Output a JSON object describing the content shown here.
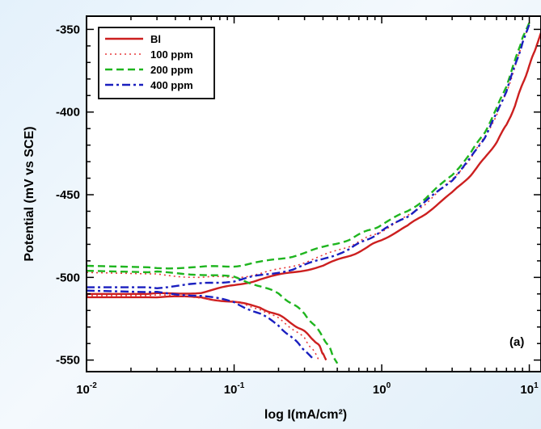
{
  "chart_data": {
    "type": "line",
    "title": "",
    "xlabel": "log I(mA/cm²)",
    "ylabel": "Potential (mV vs SCE)",
    "xscale": "log",
    "xlim": [
      0.01,
      12
    ],
    "ylim": [
      -557,
      -342
    ],
    "grid": false,
    "legend_position": "top-left",
    "x_ticks": [
      {
        "value": 0.01,
        "base": "10",
        "exp": "-2"
      },
      {
        "value": 0.1,
        "base": "10",
        "exp": "-1"
      },
      {
        "value": 1,
        "base": "10",
        "exp": "0"
      },
      {
        "value": 10,
        "base": "10",
        "exp": "1"
      }
    ],
    "y_ticks": [
      -350,
      -400,
      -450,
      -500,
      -550
    ],
    "annotation": "(a)",
    "series": [
      {
        "name": "Bl",
        "color": "#cc1f1f",
        "dash": "solid",
        "anodic": [
          [
            0.01,
            -510
          ],
          [
            0.03,
            -510
          ],
          [
            0.06,
            -509
          ],
          [
            0.1,
            -505
          ],
          [
            0.15,
            -501
          ],
          [
            0.25,
            -497
          ],
          [
            0.4,
            -493
          ],
          [
            0.6,
            -487
          ],
          [
            0.8,
            -482
          ],
          [
            1,
            -477
          ],
          [
            1.5,
            -469
          ],
          [
            2,
            -461
          ],
          [
            3,
            -449
          ],
          [
            4,
            -438
          ],
          [
            5,
            -428
          ],
          [
            6,
            -418
          ],
          [
            7,
            -408
          ],
          [
            8,
            -396
          ],
          [
            9,
            -383
          ],
          [
            10,
            -372
          ],
          [
            11,
            -362
          ],
          [
            12,
            -352
          ]
        ],
        "cathodic": [
          [
            0.01,
            -512
          ],
          [
            0.03,
            -512
          ],
          [
            0.06,
            -512
          ],
          [
            0.1,
            -515
          ],
          [
            0.15,
            -518
          ],
          [
            0.2,
            -523
          ],
          [
            0.25,
            -528
          ],
          [
            0.3,
            -533
          ],
          [
            0.35,
            -538
          ],
          [
            0.38,
            -542
          ],
          [
            0.4,
            -546
          ],
          [
            0.42,
            -550
          ]
        ]
      },
      {
        "name": "100 ppm",
        "color": "#e8383a",
        "dash": "dot",
        "anodic": [
          [
            0.01,
            -497
          ],
          [
            0.03,
            -498
          ],
          [
            0.06,
            -500
          ],
          [
            0.1,
            -500
          ],
          [
            0.15,
            -498
          ],
          [
            0.25,
            -493
          ],
          [
            0.4,
            -487
          ],
          [
            0.6,
            -481
          ],
          [
            0.8,
            -476
          ],
          [
            1,
            -472
          ],
          [
            1.5,
            -463
          ],
          [
            2,
            -455
          ],
          [
            3,
            -441
          ],
          [
            4,
            -428
          ],
          [
            5,
            -415
          ],
          [
            6,
            -402
          ],
          [
            7,
            -388
          ],
          [
            8,
            -373
          ],
          [
            9,
            -358
          ],
          [
            10,
            -347
          ]
        ],
        "cathodic": [
          [
            0.01,
            -511
          ],
          [
            0.03,
            -511
          ],
          [
            0.06,
            -512
          ],
          [
            0.1,
            -515
          ],
          [
            0.15,
            -519
          ],
          [
            0.2,
            -525
          ],
          [
            0.25,
            -531
          ],
          [
            0.3,
            -537
          ],
          [
            0.33,
            -542
          ],
          [
            0.36,
            -547
          ],
          [
            0.38,
            -551
          ]
        ]
      },
      {
        "name": "200 ppm",
        "color": "#1fb51f",
        "dash": "dash",
        "anodic": [
          [
            0.01,
            -493
          ],
          [
            0.03,
            -494
          ],
          [
            0.06,
            -494
          ],
          [
            0.1,
            -493
          ],
          [
            0.15,
            -491
          ],
          [
            0.25,
            -487
          ],
          [
            0.4,
            -482
          ],
          [
            0.6,
            -477
          ],
          [
            0.8,
            -472
          ],
          [
            1,
            -468
          ],
          [
            1.5,
            -460
          ],
          [
            2,
            -452
          ],
          [
            3,
            -438
          ],
          [
            4,
            -425
          ],
          [
            5,
            -412
          ],
          [
            6,
            -398
          ],
          [
            7,
            -384
          ],
          [
            8,
            -369
          ],
          [
            9,
            -355
          ],
          [
            10,
            -346
          ]
        ],
        "cathodic": [
          [
            0.01,
            -496
          ],
          [
            0.03,
            -497
          ],
          [
            0.06,
            -498
          ],
          [
            0.1,
            -500
          ],
          [
            0.15,
            -505
          ],
          [
            0.2,
            -510
          ],
          [
            0.25,
            -516
          ],
          [
            0.3,
            -522
          ],
          [
            0.35,
            -529
          ],
          [
            0.4,
            -536
          ],
          [
            0.44,
            -542
          ],
          [
            0.47,
            -548
          ],
          [
            0.5,
            -552
          ]
        ]
      },
      {
        "name": "400 ppm",
        "color": "#1a1fbf",
        "dash": "dashdot",
        "anodic": [
          [
            0.01,
            -506
          ],
          [
            0.03,
            -506
          ],
          [
            0.06,
            -504
          ],
          [
            0.1,
            -502
          ],
          [
            0.15,
            -499
          ],
          [
            0.25,
            -495
          ],
          [
            0.4,
            -489
          ],
          [
            0.6,
            -483
          ],
          [
            0.8,
            -477
          ],
          [
            1,
            -472
          ],
          [
            1.5,
            -463
          ],
          [
            2,
            -454
          ],
          [
            3,
            -441
          ],
          [
            4,
            -428
          ],
          [
            5,
            -415
          ],
          [
            6,
            -401
          ],
          [
            7,
            -387
          ],
          [
            8,
            -372
          ],
          [
            9,
            -358
          ],
          [
            10,
            -347
          ]
        ],
        "cathodic": [
          [
            0.01,
            -508
          ],
          [
            0.03,
            -509
          ],
          [
            0.06,
            -511
          ],
          [
            0.1,
            -515
          ],
          [
            0.15,
            -522
          ],
          [
            0.2,
            -529
          ],
          [
            0.25,
            -537
          ],
          [
            0.3,
            -544
          ],
          [
            0.35,
            -550
          ]
        ]
      }
    ]
  }
}
